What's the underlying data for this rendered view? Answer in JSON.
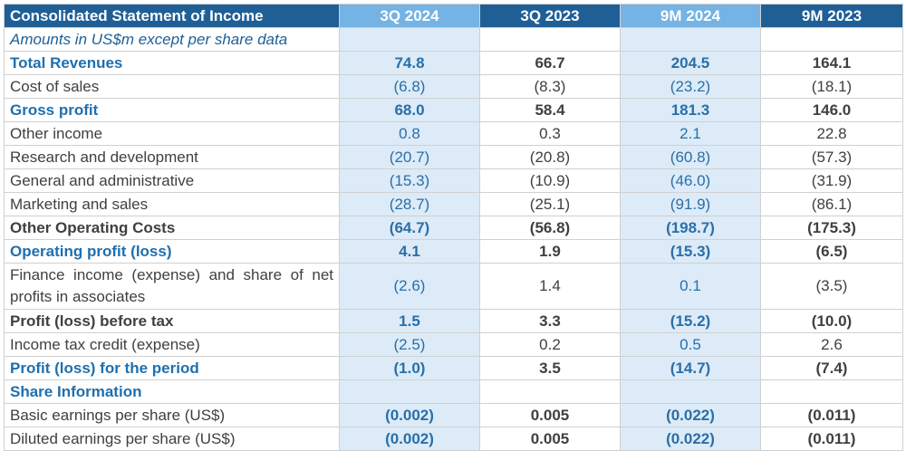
{
  "table": {
    "title": "Consolidated Statement of Income",
    "columns": [
      "3Q 2024",
      "3Q 2023",
      "9M 2024",
      "9M 2023"
    ],
    "subtitle": "Amounts in US$m except per share data",
    "rows": [
      {
        "label": "Total Revenues",
        "values": [
          "74.8",
          "66.7",
          "204.5",
          "164.1"
        ]
      },
      {
        "label": "Cost of sales",
        "values": [
          "(6.8)",
          "(8.3)",
          "(23.2)",
          "(18.1)"
        ]
      },
      {
        "label": "Gross profit",
        "values": [
          "68.0",
          "58.4",
          "181.3",
          "146.0"
        ]
      },
      {
        "label": "Other income",
        "values": [
          "0.8",
          "0.3",
          "2.1",
          "22.8"
        ]
      },
      {
        "label": "Research and development",
        "values": [
          "(20.7)",
          "(20.8)",
          "(60.8)",
          "(57.3)"
        ]
      },
      {
        "label": "General and administrative",
        "values": [
          "(15.3)",
          "(10.9)",
          "(46.0)",
          "(31.9)"
        ]
      },
      {
        "label": "Marketing and sales",
        "values": [
          "(28.7)",
          "(25.1)",
          "(91.9)",
          "(86.1)"
        ]
      },
      {
        "label": "Other Operating Costs",
        "values": [
          "(64.7)",
          "(56.8)",
          "(198.7)",
          "(175.3)"
        ]
      },
      {
        "label": "Operating profit (loss)",
        "values": [
          "4.1",
          "1.9",
          "(15.3)",
          "(6.5)"
        ]
      },
      {
        "label": "Finance income (expense) and share of net profits in associates",
        "values": [
          "(2.6)",
          "1.4",
          "0.1",
          "(3.5)"
        ]
      },
      {
        "label": "Profit (loss) before tax",
        "values": [
          "1.5",
          "3.3",
          "(15.2)",
          "(10.0)"
        ]
      },
      {
        "label": "Income tax credit (expense)",
        "values": [
          "(2.5)",
          "0.2",
          "0.5",
          "2.6"
        ]
      },
      {
        "label": "Profit (loss) for the period",
        "values": [
          "(1.0)",
          "3.5",
          "(14.7)",
          "(7.4)"
        ]
      },
      {
        "label": "Share Information",
        "values": [
          "",
          "",
          "",
          ""
        ]
      },
      {
        "label": "Basic earnings per share (US$)",
        "values": [
          "(0.002)",
          "0.005",
          "(0.022)",
          "(0.011)"
        ]
      },
      {
        "label": "Diluted earnings per share (US$)",
        "values": [
          "(0.002)",
          "0.005",
          "(0.022)",
          "(0.011)"
        ]
      }
    ]
  },
  "colors": {
    "header_bg": "#1f5f96",
    "header_highlight": "#74b3e3",
    "column_highlight": "#dcebf7",
    "accent_text": "#1f6fae"
  }
}
